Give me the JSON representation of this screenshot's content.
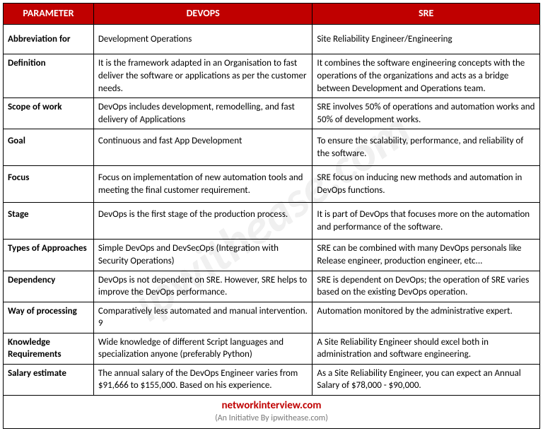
{
  "watermark": "ipwithease.com",
  "headers": {
    "param": "PARAMETER",
    "devops": "DEVOPS",
    "sre": "SRE"
  },
  "rows": [
    {
      "param": "Abbreviation for",
      "devops": "Development Operations",
      "sre": "Site Reliability Engineer/Engineering",
      "cls": "xtall"
    },
    {
      "param": "Definition",
      "devops": "It is the framework adapted in an Organisation to fast deliver the software or applications as per the customer needs.",
      "sre": "It combines the software engineering concepts with the operations of the organizations and acts as a bridge between Development and Operations team."
    },
    {
      "param": "Scope of work",
      "devops": "DevOps includes development, remodelling, and fast delivery of Applications",
      "sre": "SRE involves 50% of operations and automation works and 50% of development works."
    },
    {
      "param": "Goal",
      "devops": "Continuous and fast App Development",
      "sre": "To ensure the scalability, performance, and reliability of the software.",
      "cls": "tall"
    },
    {
      "param": "Focus",
      "devops": "Focus on implementation of new automation tools and meeting the final customer requirement.",
      "sre": "SRE focus on inducing new methods and automation in DevOps functions.",
      "cls": "tall"
    },
    {
      "param": "Stage",
      "devops": "DevOps is the first stage of the production process.",
      "sre": "It is part of DevOps that focuses more on the automation and performance of the software.",
      "cls": "tall"
    },
    {
      "param": "Types of Approaches",
      "devops": "Simple DevOps and DevSecOps (Integration with Security Operations)",
      "sre": "SRE can be combined with many DevOps personals like Release engineer, production engineer, etc..."
    },
    {
      "param": "Dependency",
      "devops": "DevOps is not dependent on SRE. However, SRE helps to improve the DevOps performance.",
      "sre": "SRE is dependent on DevOps; the operation of SRE varies based on the existing DevOps operation."
    },
    {
      "param": "Way of processing",
      "devops": "Comparatively less automated and manual intervention. 9",
      "sre": "Automation monitored by the administrative expert."
    },
    {
      "param": "Knowledge Requirements",
      "devops": "Wide knowledge of different Script languages and specialization anyone (preferably Python)",
      "sre": "A Site Reliability Engineer should excel both in administration and software engineering."
    },
    {
      "param": "Salary estimate",
      "devops": "The annual salary of the DevOps Engineer varies from $91,666 to $155,000. Based on his experience.",
      "sre": "As a Site Reliability Engineer, you can expect an Annual Salary of $78,000 - $90,000."
    }
  ],
  "footer": {
    "brand": "networkinterview.com",
    "initiative": "(An Initiative By ipwithease.com)"
  }
}
